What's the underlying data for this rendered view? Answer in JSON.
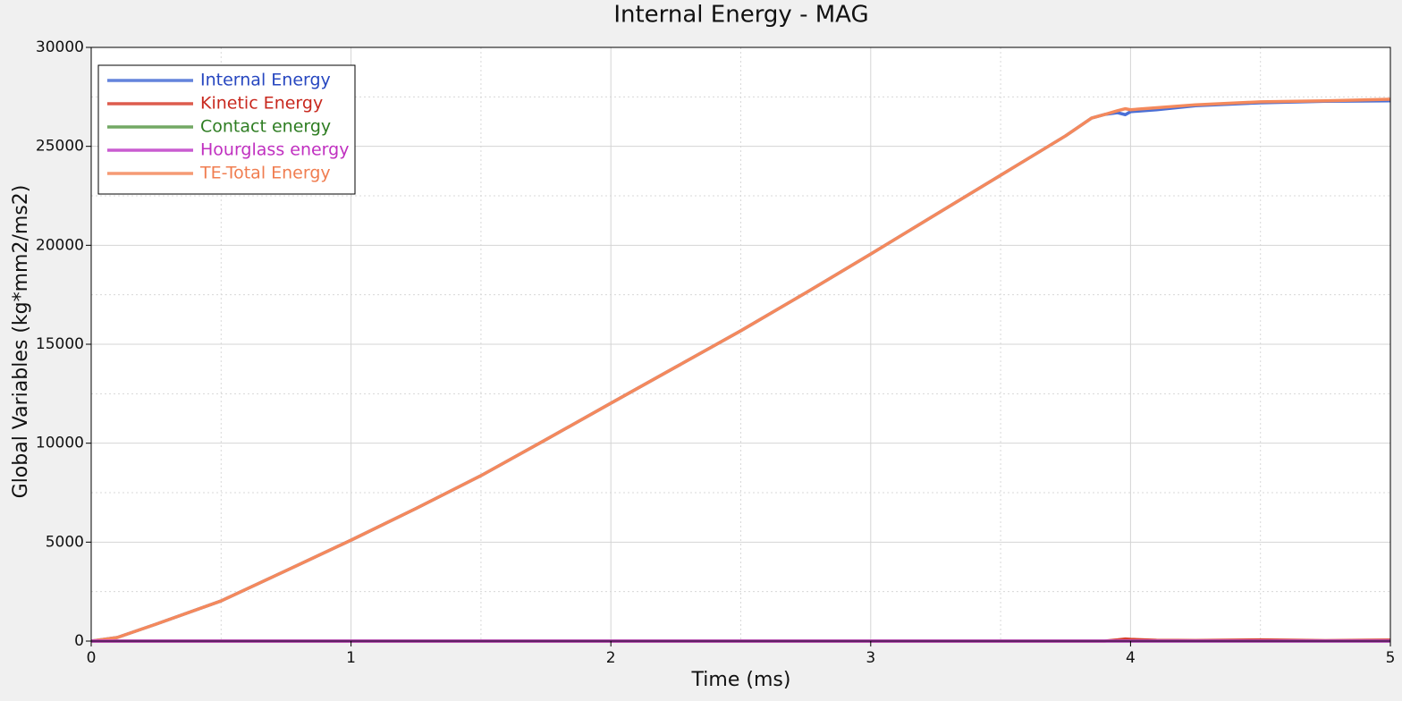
{
  "chart_data": {
    "type": "line",
    "title": "Internal Energy - MAG",
    "x_label": "Time (ms)",
    "y_label": "Global Variables (kg*mm2/ms2)",
    "x": [
      0,
      0.1,
      0.25,
      0.5,
      0.75,
      1,
      1.25,
      1.5,
      1.75,
      2,
      2.25,
      2.5,
      2.75,
      3,
      3.25,
      3.5,
      3.75,
      3.85,
      3.9,
      3.95,
      3.98,
      4,
      4.1,
      4.25,
      4.5,
      4.75,
      5
    ],
    "series": [
      {
        "name": "Internal Energy",
        "color": "#4a6fd6",
        "text_color": "#2747c0",
        "values": [
          0,
          180,
          860,
          2030,
          3560,
          5100,
          6700,
          8360,
          10180,
          12020,
          13850,
          15680,
          17600,
          19560,
          21550,
          23540,
          25530,
          26430,
          26610,
          26700,
          26600,
          26750,
          26850,
          27050,
          27200,
          27280,
          27300
        ]
      },
      {
        "name": "Kinetic Energy",
        "color": "#d8402e",
        "text_color": "#c8281e",
        "values": [
          0,
          0,
          0,
          0,
          0,
          0,
          0,
          0,
          0,
          0,
          0,
          0,
          0,
          0,
          0,
          0,
          0,
          0,
          0,
          60,
          110,
          90,
          40,
          30,
          60,
          20,
          50
        ]
      },
      {
        "name": "Contact energy",
        "color": "#5a9a4a",
        "text_color": "#2e7d22",
        "values": [
          0,
          0,
          0,
          0,
          0,
          0,
          0,
          0,
          0,
          0,
          0,
          0,
          0,
          0,
          0,
          0,
          0,
          0,
          0,
          0,
          0,
          0,
          0,
          0,
          0,
          0,
          0
        ]
      },
      {
        "name": "TE-Total Energy",
        "color": "#f4895c",
        "text_color": "#f07d50",
        "values": [
          0,
          180,
          860,
          2030,
          3560,
          5100,
          6700,
          8360,
          10180,
          12020,
          13850,
          15680,
          17600,
          19560,
          21550,
          23540,
          25530,
          26430,
          26610,
          26800,
          26900,
          26850,
          26950,
          27100,
          27250,
          27300,
          27380
        ]
      },
      {
        "name": "Hourglass energy",
        "color": "#c040c8",
        "text_color": "#c030c0",
        "values": [
          0,
          0,
          0,
          0,
          0,
          0,
          0,
          0,
          0,
          0,
          0,
          0,
          0,
          0,
          0,
          0,
          0,
          0,
          0,
          0,
          0,
          0,
          0,
          0,
          0,
          0,
          0
        ]
      }
    ],
    "legend_order": [
      0,
      1,
      2,
      4,
      3
    ],
    "xlim": [
      0,
      5
    ],
    "xticks": [
      0,
      1,
      2,
      3,
      4,
      5
    ],
    "ylim": [
      0,
      30000
    ],
    "yticks": [
      0,
      5000,
      10000,
      15000,
      20000,
      25000,
      30000
    ],
    "grid": true,
    "legend": "upper left"
  }
}
